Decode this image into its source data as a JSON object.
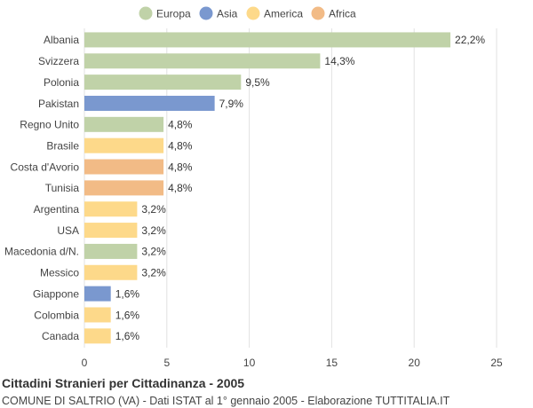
{
  "chart_data": {
    "type": "bar",
    "orientation": "horizontal",
    "title": "Cittadini Stranieri per Cittadinanza - 2005",
    "subtitle": "COMUNE DI SALTRIO (VA) - Dati ISTAT al 1° gennaio 2005 - Elaborazione TUTTITALIA.IT",
    "xlim": [
      0,
      25
    ],
    "xticks": [
      0,
      5,
      10,
      15,
      20,
      25
    ],
    "grid": true,
    "legend_position": "top",
    "legend": [
      {
        "name": "Europa",
        "color": "#c0d2a8"
      },
      {
        "name": "Asia",
        "color": "#7a98cf"
      },
      {
        "name": "America",
        "color": "#fdd98a"
      },
      {
        "name": "Africa",
        "color": "#f2bb86"
      }
    ],
    "categories": [
      "Albania",
      "Svizzera",
      "Polonia",
      "Pakistan",
      "Regno Unito",
      "Brasile",
      "Costa d'Avorio",
      "Tunisia",
      "Argentina",
      "USA",
      "Macedonia d/N.",
      "Messico",
      "Giappone",
      "Colombia",
      "Canada"
    ],
    "values": [
      22.2,
      14.3,
      9.5,
      7.9,
      4.8,
      4.8,
      4.8,
      4.8,
      3.2,
      3.2,
      3.2,
      3.2,
      1.6,
      1.6,
      1.6
    ],
    "value_labels": [
      "22,2%",
      "14,3%",
      "9,5%",
      "7,9%",
      "4,8%",
      "4,8%",
      "4,8%",
      "4,8%",
      "3,2%",
      "3,2%",
      "3,2%",
      "3,2%",
      "1,6%",
      "1,6%",
      "1,6%"
    ],
    "groups": [
      "Europa",
      "Europa",
      "Europa",
      "Asia",
      "Europa",
      "America",
      "Africa",
      "Africa",
      "America",
      "America",
      "Europa",
      "America",
      "Asia",
      "America",
      "America"
    ]
  }
}
